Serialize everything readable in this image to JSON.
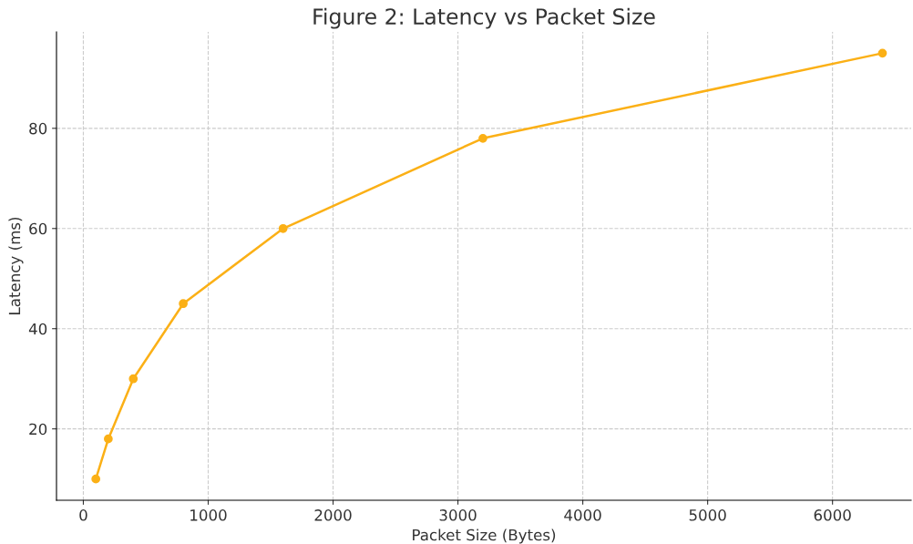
{
  "chart_data": {
    "type": "line",
    "title": "Figure 2: Latency vs Packet Size",
    "xlabel": "Packet Size (Bytes)",
    "ylabel": "Latency (ms)",
    "x": [
      100,
      200,
      400,
      800,
      1600,
      3200,
      6400
    ],
    "series": [
      {
        "color": "#fbb016",
        "values": [
          10,
          18,
          30,
          45,
          60,
          78,
          95
        ]
      }
    ],
    "xlim": [
      -215,
      6630
    ],
    "ylim": [
      5.75,
      99.25
    ],
    "xticks": [
      0,
      1000,
      2000,
      3000,
      4000,
      5000,
      6000
    ],
    "yticks": [
      20,
      40,
      60,
      80
    ],
    "grid": true,
    "marker": "circle",
    "line_style": "solid",
    "legend": false
  }
}
